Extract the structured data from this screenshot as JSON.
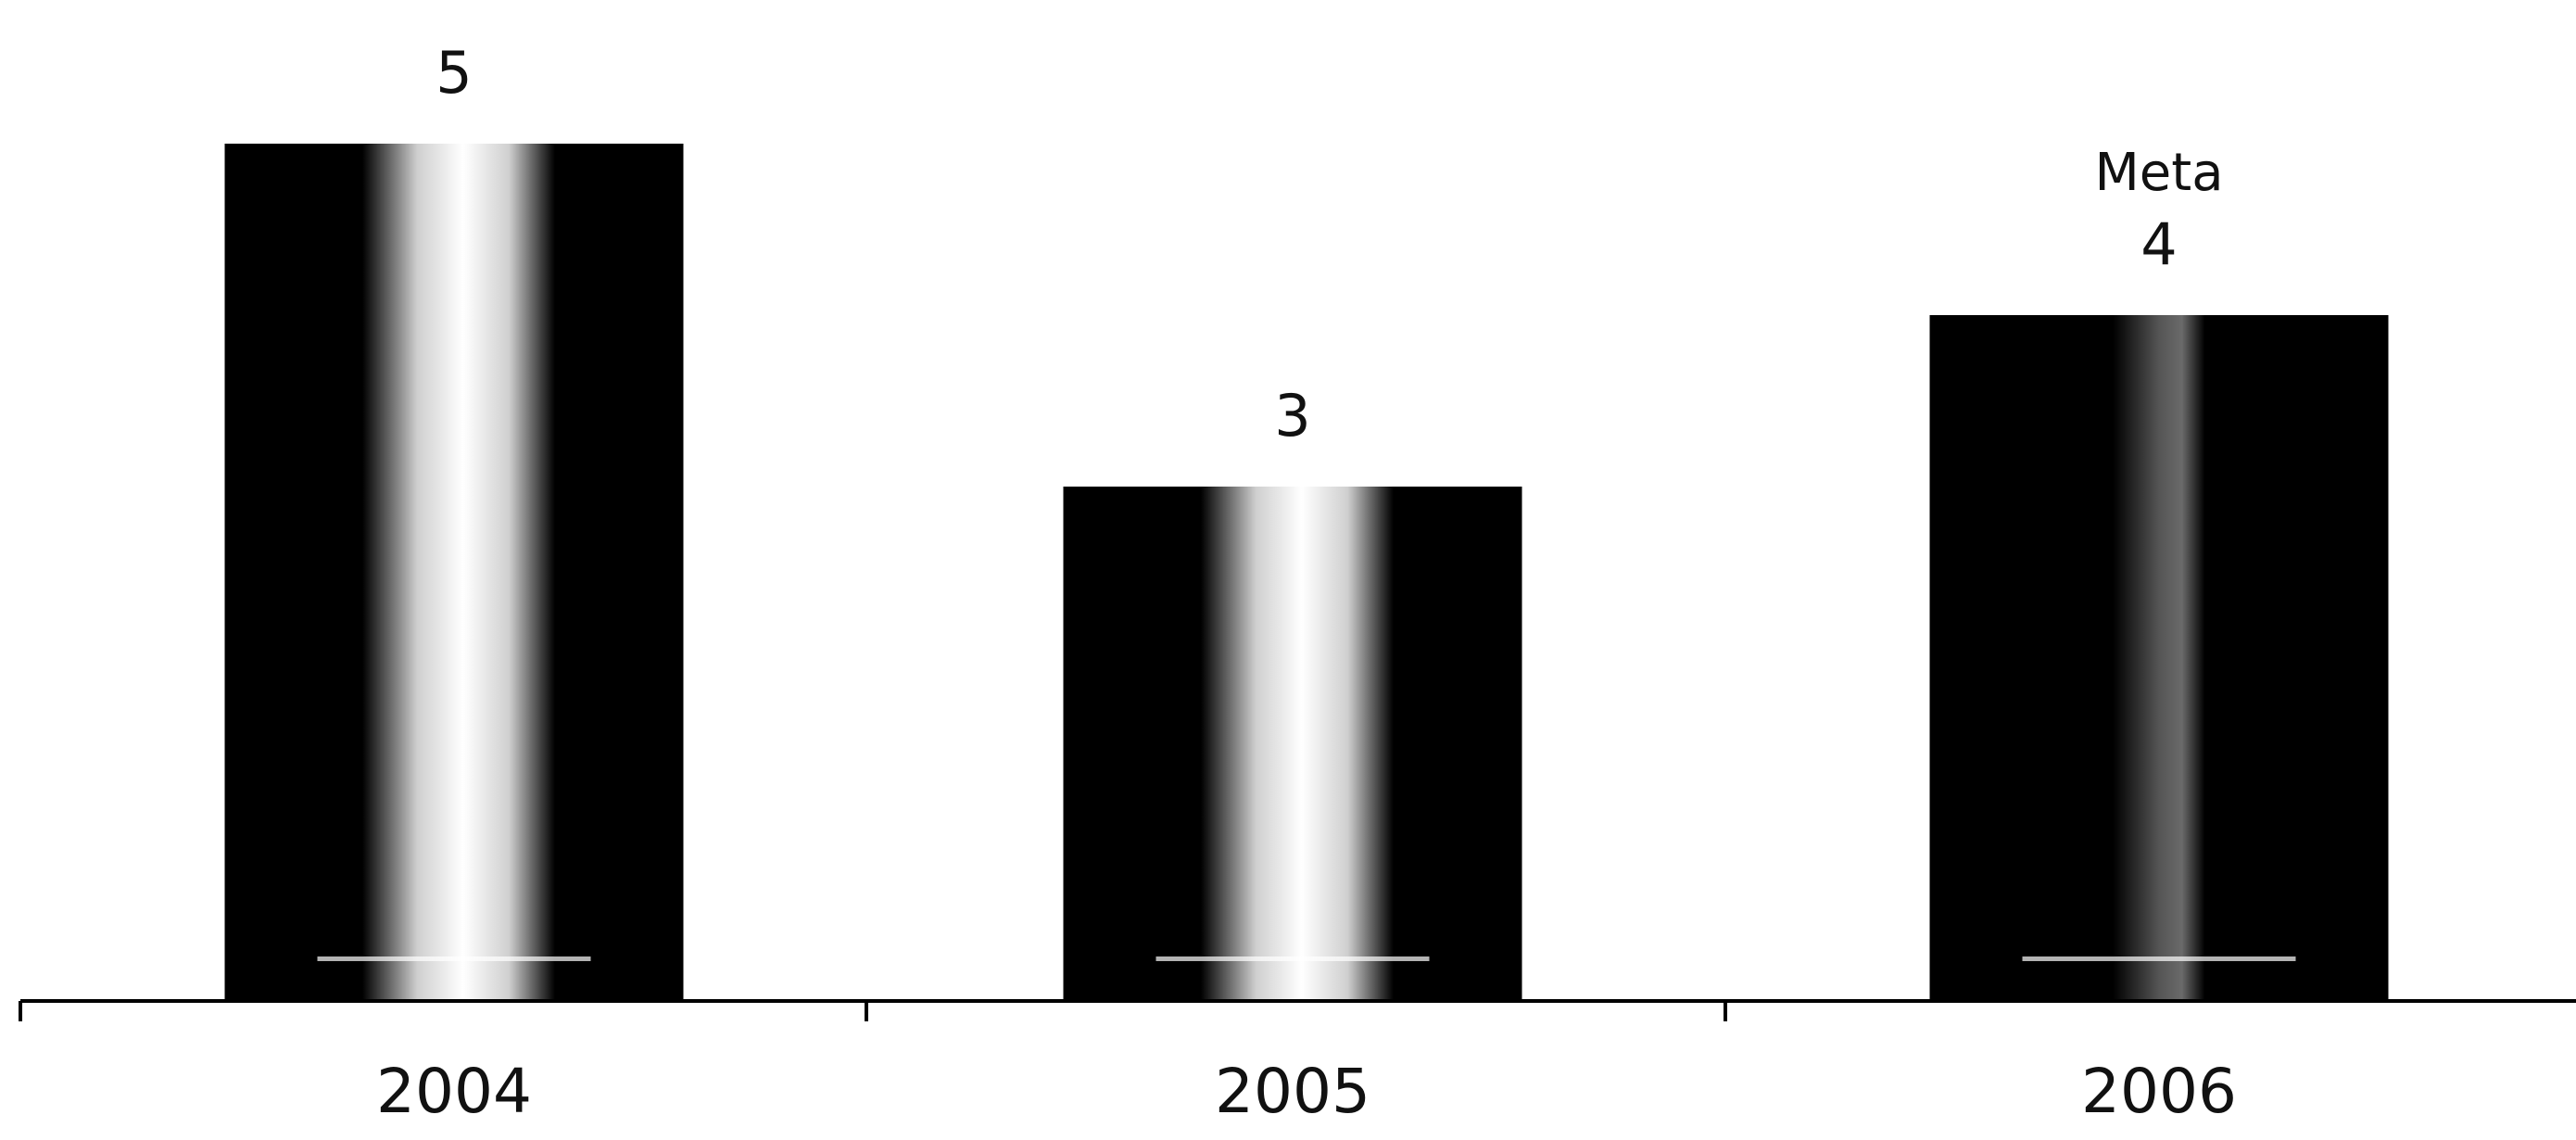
{
  "chart_data": {
    "type": "bar",
    "categories": [
      "2004",
      "2005",
      "2006"
    ],
    "values": [
      5,
      3,
      4
    ],
    "data_labels": [
      "5",
      "3",
      "4"
    ],
    "annotations": [
      {
        "category": "2006",
        "text": "Meta"
      }
    ],
    "title": "",
    "xlabel": "",
    "ylabel": "",
    "ylim": [
      0,
      5
    ],
    "grid": false,
    "legend": "none",
    "colors": {
      "bar_dark": "#000000",
      "bar_highlight": "#ffffff",
      "axis": "#000000",
      "background": "#ffffff"
    }
  }
}
